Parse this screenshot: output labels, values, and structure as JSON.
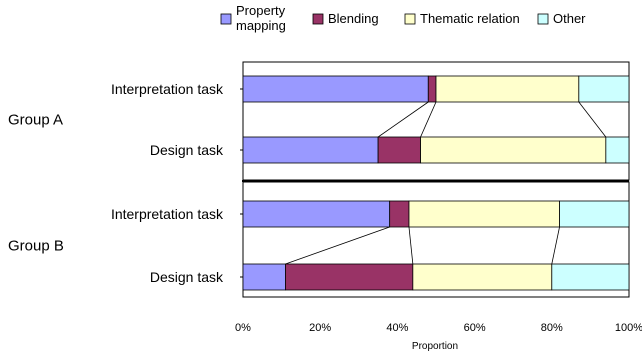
{
  "chart_data": {
    "type": "bar",
    "stacked": "percent",
    "orientation": "horizontal",
    "legend_position": "top",
    "xlabel": "Proportion",
    "xlim": [
      0,
      100
    ],
    "x_ticks": [
      "0%",
      "20%",
      "40%",
      "60%",
      "80%",
      "100%"
    ],
    "groups": [
      {
        "name": "Group A",
        "bars": [
          {
            "label": "Interpretation task",
            "values": [
              48,
              2,
              37,
              13
            ]
          },
          {
            "label": "Design task",
            "values": [
              35,
              11,
              48,
              6
            ]
          }
        ]
      },
      {
        "name": "Group B",
        "bars": [
          {
            "label": "Interpretation task",
            "values": [
              38,
              5,
              39,
              18
            ]
          },
          {
            "label": "Design task",
            "values": [
              11,
              33,
              36,
              20
            ]
          }
        ]
      }
    ],
    "series": [
      {
        "name": "Property\nmapping",
        "color": "#9999ff"
      },
      {
        "name": "Blending",
        "color": "#993366"
      },
      {
        "name": "Thematic relation",
        "color": "#ffffcc"
      },
      {
        "name": "Other",
        "color": "#ccffff"
      }
    ]
  }
}
